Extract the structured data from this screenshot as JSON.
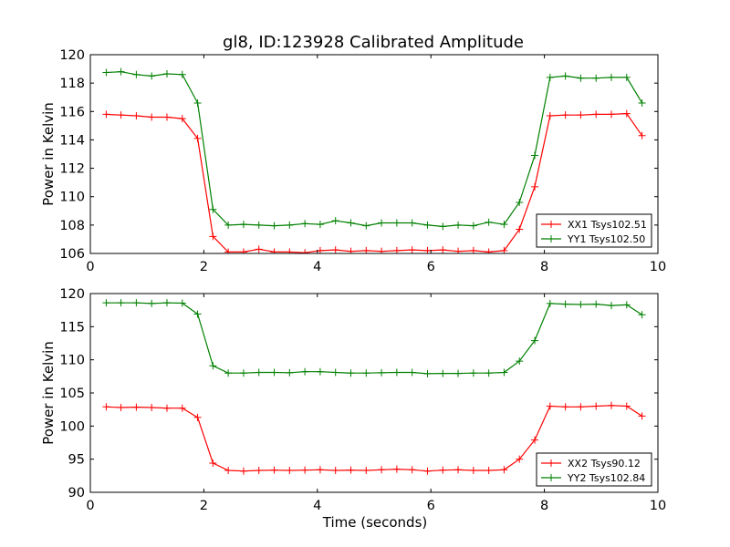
{
  "figure": {
    "title": "gl8, ID:123928 Calibrated Amplitude",
    "xlabel": "Time (seconds)"
  },
  "chart_data": [
    {
      "type": "line",
      "title": "gl8, ID:123928 Calibrated Amplitude",
      "xlabel": "",
      "ylabel": "Power in Kelvin",
      "xlim": [
        0,
        10
      ],
      "ylim": [
        106,
        120
      ],
      "xticks": [
        0,
        2,
        4,
        6,
        8,
        10
      ],
      "yticks": [
        106,
        108,
        110,
        112,
        114,
        116,
        118,
        120
      ],
      "grid": false,
      "legend_position": "lower-right",
      "marker": "+",
      "x": [
        0.28,
        0.54,
        0.81,
        1.08,
        1.35,
        1.62,
        1.89,
        2.16,
        2.43,
        2.7,
        2.97,
        3.24,
        3.51,
        3.78,
        4.05,
        4.32,
        4.59,
        4.86,
        5.13,
        5.4,
        5.67,
        5.94,
        6.21,
        6.48,
        6.75,
        7.02,
        7.29,
        7.56,
        7.83,
        8.1,
        8.37,
        8.64,
        8.91,
        9.18,
        9.45,
        9.72
      ],
      "series": [
        {
          "name": "XX1 Tsys102.51",
          "color": "#ff0000",
          "values": [
            115.8,
            115.75,
            115.7,
            115.6,
            115.6,
            115.5,
            114.1,
            107.2,
            106.1,
            106.1,
            106.3,
            106.1,
            106.1,
            106.05,
            106.2,
            106.25,
            106.15,
            106.2,
            106.15,
            106.2,
            106.25,
            106.2,
            106.25,
            106.15,
            106.2,
            106.1,
            106.2,
            107.7,
            110.7,
            115.7,
            115.75,
            115.75,
            115.8,
            115.8,
            115.85,
            114.3
          ]
        },
        {
          "name": "YY1 Tsys102.50",
          "color": "#008000",
          "values": [
            118.75,
            118.8,
            118.6,
            118.5,
            118.65,
            118.6,
            116.6,
            109.1,
            108.0,
            108.05,
            108.0,
            107.95,
            108.0,
            108.1,
            108.05,
            108.3,
            108.15,
            107.95,
            108.15,
            108.15,
            108.15,
            108.0,
            107.9,
            108.0,
            107.95,
            108.2,
            108.05,
            109.6,
            112.9,
            118.4,
            118.5,
            118.35,
            118.35,
            118.4,
            118.4,
            116.6
          ]
        }
      ]
    },
    {
      "type": "line",
      "title": "",
      "xlabel": "Time (seconds)",
      "ylabel": "Power in Kelvin",
      "xlim": [
        0,
        10
      ],
      "ylim": [
        90,
        120
      ],
      "xticks": [
        0,
        2,
        4,
        6,
        8,
        10
      ],
      "yticks": [
        90,
        95,
        100,
        105,
        110,
        115,
        120
      ],
      "grid": false,
      "legend_position": "lower-right",
      "marker": "+",
      "x": [
        0.28,
        0.54,
        0.81,
        1.08,
        1.35,
        1.62,
        1.89,
        2.16,
        2.43,
        2.7,
        2.97,
        3.24,
        3.51,
        3.78,
        4.05,
        4.32,
        4.59,
        4.86,
        5.13,
        5.4,
        5.67,
        5.94,
        6.21,
        6.48,
        6.75,
        7.02,
        7.29,
        7.56,
        7.83,
        8.1,
        8.37,
        8.64,
        8.91,
        9.18,
        9.45,
        9.72
      ],
      "series": [
        {
          "name": "XX2 Tsys90.12",
          "color": "#ff0000",
          "values": [
            102.9,
            102.8,
            102.85,
            102.8,
            102.7,
            102.7,
            101.3,
            94.4,
            93.3,
            93.2,
            93.3,
            93.35,
            93.3,
            93.35,
            93.4,
            93.3,
            93.35,
            93.3,
            93.4,
            93.5,
            93.4,
            93.2,
            93.35,
            93.4,
            93.3,
            93.3,
            93.4,
            95.0,
            97.9,
            103.0,
            102.9,
            102.9,
            103.0,
            103.1,
            103.0,
            101.5
          ]
        },
        {
          "name": "YY2 Tsys102.84",
          "color": "#008000",
          "values": [
            118.6,
            118.6,
            118.6,
            118.5,
            118.6,
            118.55,
            116.9,
            109.1,
            108.0,
            108.0,
            108.1,
            108.1,
            108.05,
            108.2,
            108.2,
            108.1,
            108.0,
            108.0,
            108.05,
            108.1,
            108.1,
            107.9,
            107.95,
            107.95,
            108.0,
            108.0,
            108.1,
            109.8,
            112.9,
            118.5,
            118.4,
            118.35,
            118.4,
            118.2,
            118.3,
            116.8
          ]
        }
      ]
    }
  ]
}
